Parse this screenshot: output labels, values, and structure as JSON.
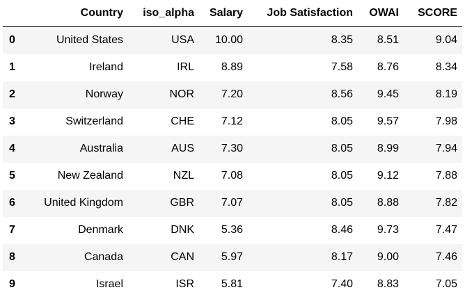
{
  "table": {
    "columns": [
      "",
      "Country",
      "iso_alpha",
      "Salary",
      "Job Satisfaction",
      "OWAI",
      "SCORE"
    ],
    "rows": [
      {
        "index": "0",
        "country": "United States",
        "iso_alpha": "USA",
        "salary": "10.00",
        "job_satisfaction": "8.35",
        "owai": "8.51",
        "score": "9.04"
      },
      {
        "index": "1",
        "country": "Ireland",
        "iso_alpha": "IRL",
        "salary": "8.89",
        "job_satisfaction": "7.58",
        "owai": "8.76",
        "score": "8.34"
      },
      {
        "index": "2",
        "country": "Norway",
        "iso_alpha": "NOR",
        "salary": "7.20",
        "job_satisfaction": "8.56",
        "owai": "9.45",
        "score": "8.19"
      },
      {
        "index": "3",
        "country": "Switzerland",
        "iso_alpha": "CHE",
        "salary": "7.12",
        "job_satisfaction": "8.05",
        "owai": "9.57",
        "score": "7.98"
      },
      {
        "index": "4",
        "country": "Australia",
        "iso_alpha": "AUS",
        "salary": "7.30",
        "job_satisfaction": "8.05",
        "owai": "8.99",
        "score": "7.94"
      },
      {
        "index": "5",
        "country": "New Zealand",
        "iso_alpha": "NZL",
        "salary": "7.08",
        "job_satisfaction": "8.05",
        "owai": "9.12",
        "score": "7.88"
      },
      {
        "index": "6",
        "country": "United Kingdom",
        "iso_alpha": "GBR",
        "salary": "7.07",
        "job_satisfaction": "8.05",
        "owai": "8.88",
        "score": "7.82"
      },
      {
        "index": "7",
        "country": "Denmark",
        "iso_alpha": "DNK",
        "salary": "5.36",
        "job_satisfaction": "8.46",
        "owai": "9.73",
        "score": "7.47"
      },
      {
        "index": "8",
        "country": "Canada",
        "iso_alpha": "CAN",
        "salary": "5.97",
        "job_satisfaction": "8.17",
        "owai": "9.00",
        "score": "7.46"
      },
      {
        "index": "9",
        "country": "Israel",
        "iso_alpha": "ISR",
        "salary": "5.81",
        "job_satisfaction": "7.40",
        "owai": "8.83",
        "score": "7.05"
      }
    ]
  }
}
